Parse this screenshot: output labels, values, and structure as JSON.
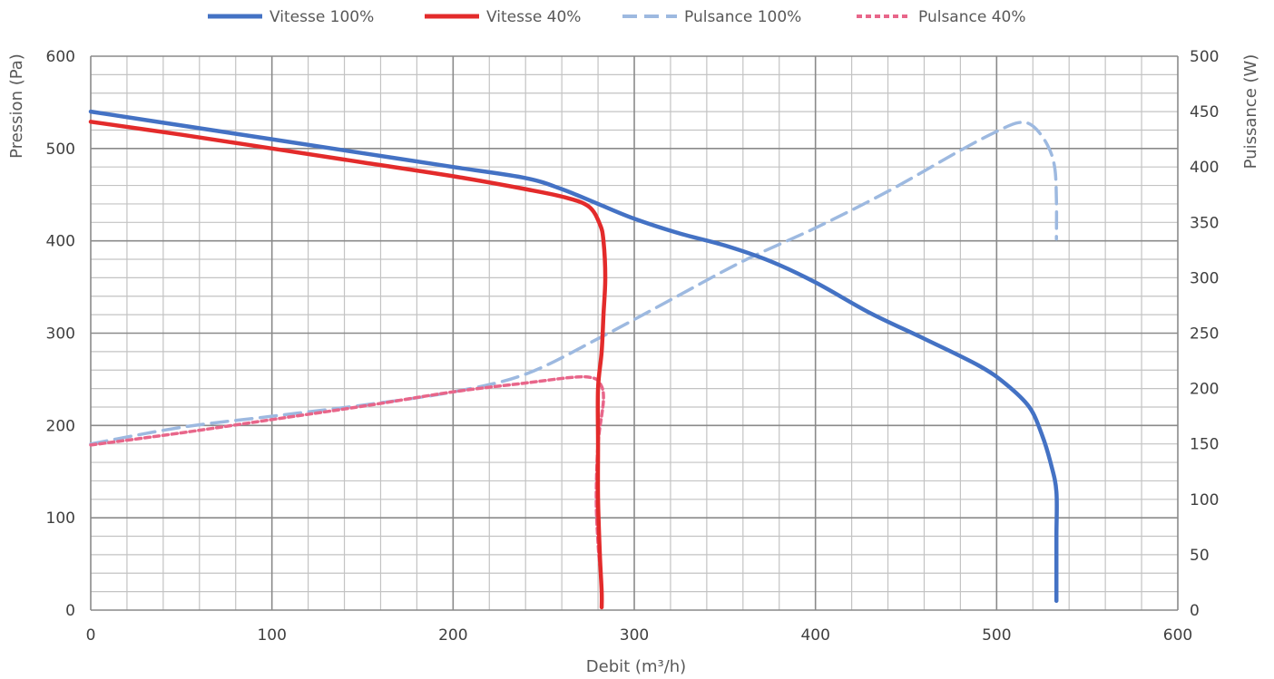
{
  "chart_data": {
    "type": "line",
    "xlabel": "Debit (m³/h)",
    "ylabel": "Pression (Pa)",
    "y2label": "Puissance (W)",
    "xlim": [
      0,
      600
    ],
    "ylim": [
      0,
      600
    ],
    "y2lim": [
      0,
      500
    ],
    "xticks": [
      0,
      100,
      200,
      300,
      400,
      500,
      600
    ],
    "yticks": [
      0,
      100,
      200,
      300,
      400,
      500,
      600
    ],
    "y2ticks": [
      0,
      50,
      100,
      150,
      200,
      250,
      300,
      350,
      400,
      450,
      500
    ],
    "grid": true,
    "legend": "top",
    "series": [
      {
        "name": "Vitesse 100%",
        "axis": "left",
        "style": "solid",
        "color": "#4472C4",
        "x": [
          0,
          50,
          100,
          150,
          200,
          240,
          260,
          280,
          300,
          325,
          350,
          375,
          400,
          430,
          460,
          490,
          505,
          518,
          525,
          530,
          533,
          533,
          533,
          533
        ],
        "y": [
          540,
          525,
          510,
          495,
          480,
          468,
          456,
          440,
          424,
          408,
          395,
          378,
          355,
          322,
          294,
          265,
          245,
          220,
          190,
          158,
          128,
          80,
          30,
          10
        ]
      },
      {
        "name": "Vitesse 40%",
        "axis": "left",
        "style": "solid",
        "color": "#E32B2B",
        "x": [
          0,
          50,
          100,
          150,
          200,
          240,
          262,
          275,
          281,
          283,
          284,
          283,
          282,
          280,
          280,
          280,
          281,
          282,
          282
        ],
        "y": [
          529,
          515,
          500,
          485,
          470,
          456,
          447,
          437,
          418,
          400,
          360,
          320,
          280,
          240,
          180,
          120,
          60,
          20,
          3
        ]
      },
      {
        "name": "Pulsance 100%",
        "axis": "right",
        "style": "dashed",
        "color": "#9DB9E0",
        "x": [
          0,
          50,
          100,
          150,
          200,
          240,
          280,
          320,
          360,
          400,
          440,
          480,
          500,
          512,
          520,
          528,
          532,
          533,
          533
        ],
        "y": [
          150,
          165,
          175,
          185,
          197,
          213,
          245,
          280,
          315,
          345,
          378,
          415,
          432,
          440,
          437,
          420,
          400,
          370,
          335
        ]
      },
      {
        "name": "Pulsance  40%",
        "axis": "right",
        "style": "dashed",
        "color": "#E8668A",
        "x": [
          0,
          50,
          100,
          150,
          200,
          240,
          265,
          276,
          281,
          283,
          280,
          279,
          280,
          281
        ],
        "y": [
          149,
          160,
          172,
          184,
          197,
          205,
          210,
          210,
          205,
          190,
          150,
          100,
          60,
          40
        ]
      }
    ]
  }
}
